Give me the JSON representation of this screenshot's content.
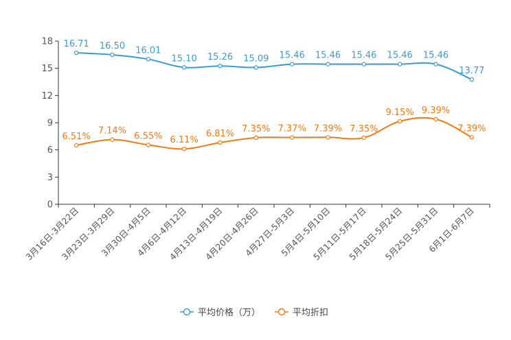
{
  "chart_data": {
    "type": "line",
    "title": "",
    "xlabel": "",
    "ylabel": "",
    "ylim": [
      0,
      18
    ],
    "yticks": [
      "0",
      "3",
      "6",
      "9",
      "12",
      "15",
      "18"
    ],
    "categories": [
      "3月16日-3月22日",
      "3月23日-3月29日",
      "3月30日-4月5日",
      "4月6日-4月12日",
      "4月13日-4月19日",
      "4月20日-4月26日",
      "4月27日-5月3日",
      "5月4日-5月10日",
      "5月11日-5月17日",
      "5月18日-5月24日",
      "5月25日-5月31日",
      "6月1日-6月7日"
    ],
    "series": [
      {
        "name": "平均价格（万）",
        "color": "#3a9ad1",
        "values": [
          16.71,
          16.5,
          16.01,
          15.1,
          15.26,
          15.09,
          15.46,
          15.46,
          15.46,
          15.46,
          15.46,
          13.77
        ],
        "labels": [
          "16.71",
          "16.50",
          "16.01",
          "15.10",
          "15.26",
          "15.09",
          "15.46",
          "15.46",
          "15.46",
          "15.46",
          "15.46",
          "13.77"
        ]
      },
      {
        "name": "平均折扣",
        "color": "#f5780f",
        "values": [
          6.51,
          7.14,
          6.55,
          6.11,
          6.81,
          7.35,
          7.37,
          7.39,
          7.35,
          9.15,
          9.39,
          7.39
        ],
        "labels": [
          "6.51%",
          "7.14%",
          "6.55%",
          "6.11%",
          "6.81%",
          "7.35%",
          "7.37%",
          "7.39%",
          "7.35%",
          "9.15%",
          "9.39%",
          "7.39%"
        ]
      }
    ]
  }
}
